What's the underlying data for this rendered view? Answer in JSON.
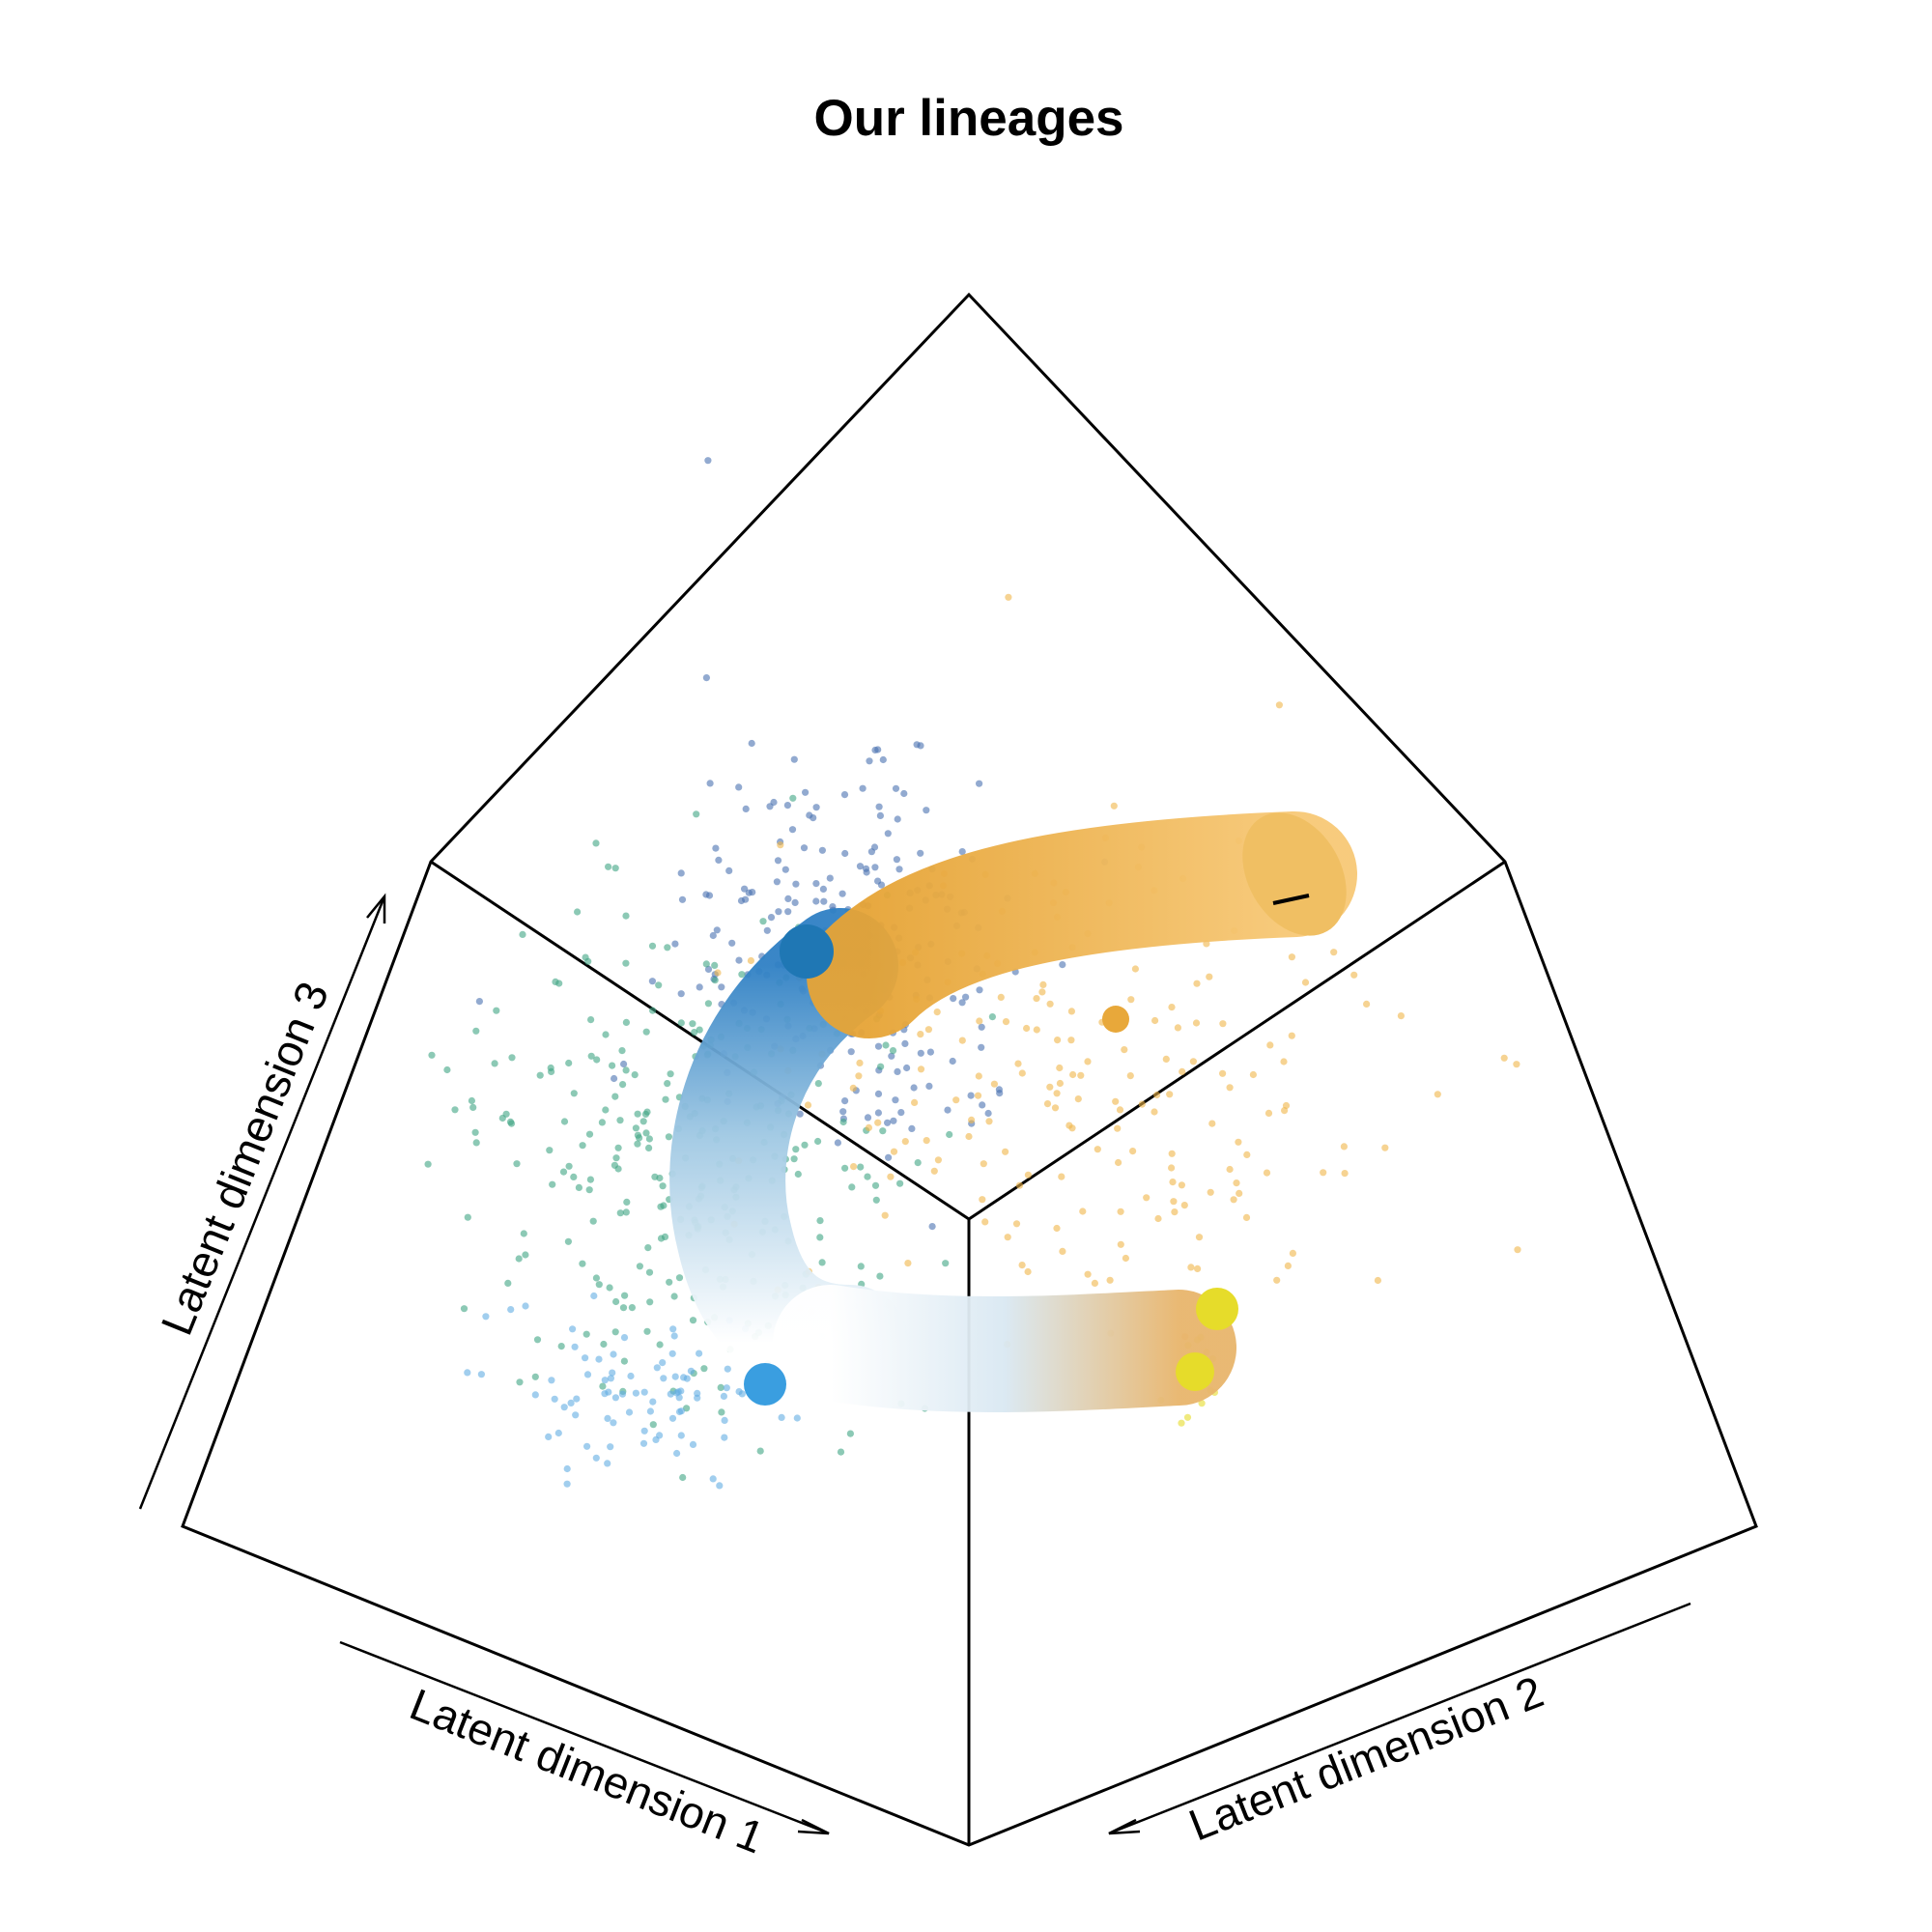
{
  "chart_data": {
    "type": "scatter",
    "title": "Our lineages",
    "axes": [
      {
        "id": "dim1",
        "label": "Latent dimension 1"
      },
      {
        "id": "dim2",
        "label": "Latent dimension 2"
      },
      {
        "id": "dim3",
        "label": "Latent dimension 3"
      }
    ],
    "grid": false,
    "legend": "none",
    "projection": "3d-perspective",
    "point_groups": [
      {
        "color": "#4a72b0",
        "n": 230,
        "region": "upper-center"
      },
      {
        "color": "#3fa584",
        "n": 300,
        "region": "left-middle"
      },
      {
        "color": "#f0b64a",
        "n": 200,
        "region": "right-middle"
      },
      {
        "color": "#62aee3",
        "n": 90,
        "region": "lower-left"
      },
      {
        "color": "#e6dc2a",
        "n": 20,
        "region": "lower-right"
      }
    ],
    "lineage_tubes": [
      {
        "name": "",
        "gradient": [
          "#2f80c4",
          "#ffffff"
        ],
        "segment": "upper-left-bend"
      },
      {
        "name": "",
        "gradient": [
          "#e8a83a",
          "#f8c870"
        ],
        "segment": "upper-right"
      },
      {
        "name": "",
        "gradient": [
          "#dbe9f3",
          "#e9b56b"
        ],
        "segment": "lower-right"
      }
    ],
    "cluster_centers": [
      {
        "color": "#1f77b4",
        "position": "upper-left"
      },
      {
        "color": "#3a9ee0",
        "position": "lower-left"
      },
      {
        "color": "#e6dc2a",
        "position": "lower-right-upper"
      },
      {
        "color": "#e6dc2a",
        "position": "lower-right-lower"
      },
      {
        "color": "#e8a83a",
        "position": "upper-right"
      }
    ]
  }
}
